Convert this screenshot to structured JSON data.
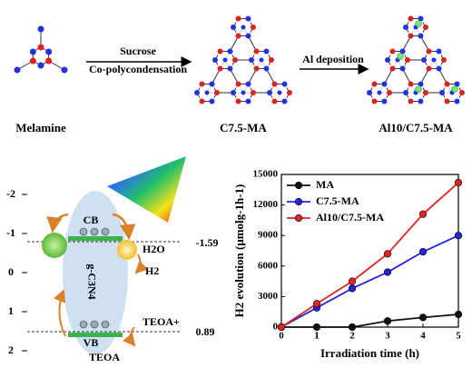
{
  "scheme": {
    "start_label": "Melamine",
    "step1_top": "Sucrose",
    "step1_bottom": "Co-polycondensation",
    "middle_label": "C7.5-MA",
    "step2": "Al deposition",
    "end_label": "Al10/C7.5-MA"
  },
  "band_diagram": {
    "axis_ticks": [
      -2,
      -1,
      0,
      1,
      2
    ],
    "cb": "CB",
    "vb": "VB",
    "material": "g-C3N4",
    "cb_potential": "-1.59",
    "vb_potential": "0.89",
    "reduction_in": "H2O",
    "reduction_out": "H2",
    "oxidation_in": "TEOA",
    "oxidation_out": "TEOA+"
  },
  "chart_data": {
    "type": "line",
    "x": [
      0,
      1,
      2,
      3,
      4,
      5
    ],
    "series": [
      {
        "name": "MA",
        "color": "#111111",
        "values": [
          0,
          0,
          0,
          600,
          950,
          1250
        ]
      },
      {
        "name": "C7.5-MA",
        "color": "#2424d8",
        "values": [
          0,
          1900,
          3800,
          5400,
          7400,
          9000
        ]
      },
      {
        "name": "Al10/C7.5-MA",
        "color": "#e02424",
        "values": [
          0,
          2300,
          4500,
          7200,
          11100,
          14200
        ]
      }
    ],
    "xlabel": "Irradiation time (h)",
    "ylabel": "H2 evolution (μmolg-1h-1)",
    "xlim": [
      0,
      5
    ],
    "xticks": [
      0,
      1,
      2,
      3,
      4,
      5
    ],
    "ylim": [
      0,
      15000
    ],
    "yticks": [
      0,
      3000,
      6000,
      9000,
      12000,
      15000
    ],
    "legend": "top-left"
  }
}
